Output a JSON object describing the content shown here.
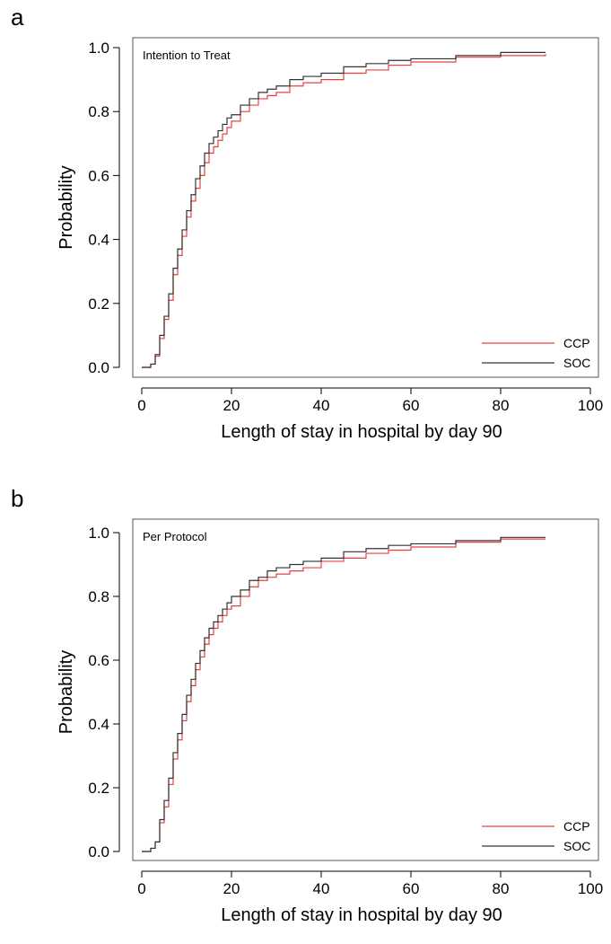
{
  "chart_data": [
    {
      "type": "step",
      "label": "a",
      "annotation": "Intention to Treat",
      "xlabel": "Length of stay in hospital by day 90",
      "ylabel": "Probability",
      "xlim": [
        0,
        100
      ],
      "xticks": [
        0,
        20,
        40,
        60,
        80,
        100
      ],
      "ylim": [
        0,
        1
      ],
      "yticks": [
        {
          "value": 0,
          "label": "0.0"
        },
        {
          "value": 0.2,
          "label": "0.2"
        },
        {
          "value": 0.4,
          "label": "0.4"
        },
        {
          "value": 0.6,
          "label": "0.6"
        },
        {
          "value": 0.8,
          "label": "0.8"
        },
        {
          "value": 1,
          "label": "1.0"
        }
      ],
      "x": [
        0,
        1,
        2,
        3,
        4,
        5,
        6,
        7,
        8,
        9,
        10,
        11,
        12,
        13,
        14,
        15,
        16,
        17,
        18,
        19,
        20,
        22,
        24,
        26,
        28,
        30,
        33,
        36,
        40,
        45,
        50,
        55,
        60,
        70,
        80,
        90
      ],
      "series": [
        {
          "name": "CCP",
          "color": "#e8413c",
          "values": [
            0,
            0,
            0.01,
            0.035,
            0.09,
            0.15,
            0.21,
            0.29,
            0.35,
            0.41,
            0.47,
            0.52,
            0.56,
            0.6,
            0.64,
            0.67,
            0.69,
            0.71,
            0.73,
            0.75,
            0.77,
            0.8,
            0.82,
            0.84,
            0.85,
            0.86,
            0.88,
            0.89,
            0.9,
            0.92,
            0.93,
            0.945,
            0.955,
            0.97,
            0.975,
            0.98
          ]
        },
        {
          "name": "SOC",
          "color": "#333333",
          "values": [
            0,
            0,
            0.01,
            0.04,
            0.1,
            0.16,
            0.23,
            0.31,
            0.37,
            0.43,
            0.49,
            0.54,
            0.59,
            0.63,
            0.67,
            0.7,
            0.72,
            0.74,
            0.76,
            0.78,
            0.79,
            0.82,
            0.84,
            0.86,
            0.87,
            0.88,
            0.9,
            0.91,
            0.92,
            0.94,
            0.95,
            0.96,
            0.965,
            0.975,
            0.985,
            0.985
          ]
        }
      ]
    },
    {
      "type": "step",
      "label": "b",
      "annotation": "Per Protocol",
      "xlabel": "Length of stay in hospital by day 90",
      "ylabel": "Probability",
      "xlim": [
        0,
        100
      ],
      "xticks": [
        0,
        20,
        40,
        60,
        80,
        100
      ],
      "ylim": [
        0,
        1
      ],
      "yticks": [
        {
          "value": 0,
          "label": "0.0"
        },
        {
          "value": 0.2,
          "label": "0.2"
        },
        {
          "value": 0.4,
          "label": "0.4"
        },
        {
          "value": 0.6,
          "label": "0.6"
        },
        {
          "value": 0.8,
          "label": "0.8"
        },
        {
          "value": 1,
          "label": "1.0"
        }
      ],
      "x": [
        0,
        1,
        2,
        3,
        4,
        5,
        6,
        7,
        8,
        9,
        10,
        11,
        12,
        13,
        14,
        15,
        16,
        17,
        18,
        19,
        20,
        22,
        24,
        26,
        28,
        30,
        33,
        36,
        40,
        45,
        50,
        55,
        60,
        70,
        80,
        90
      ],
      "series": [
        {
          "name": "CCP",
          "color": "#e8413c",
          "values": [
            0,
            0,
            0.01,
            0.03,
            0.09,
            0.14,
            0.21,
            0.29,
            0.35,
            0.41,
            0.47,
            0.52,
            0.57,
            0.61,
            0.65,
            0.68,
            0.7,
            0.72,
            0.74,
            0.76,
            0.77,
            0.8,
            0.83,
            0.85,
            0.86,
            0.87,
            0.88,
            0.89,
            0.91,
            0.92,
            0.935,
            0.945,
            0.955,
            0.97,
            0.98,
            0.98
          ]
        },
        {
          "name": "SOC",
          "color": "#333333",
          "values": [
            0,
            0,
            0.01,
            0.03,
            0.1,
            0.16,
            0.23,
            0.31,
            0.37,
            0.43,
            0.49,
            0.54,
            0.59,
            0.63,
            0.67,
            0.7,
            0.72,
            0.74,
            0.76,
            0.78,
            0.8,
            0.82,
            0.85,
            0.86,
            0.88,
            0.89,
            0.9,
            0.91,
            0.92,
            0.94,
            0.95,
            0.96,
            0.965,
            0.975,
            0.985,
            0.985
          ]
        }
      ]
    }
  ]
}
